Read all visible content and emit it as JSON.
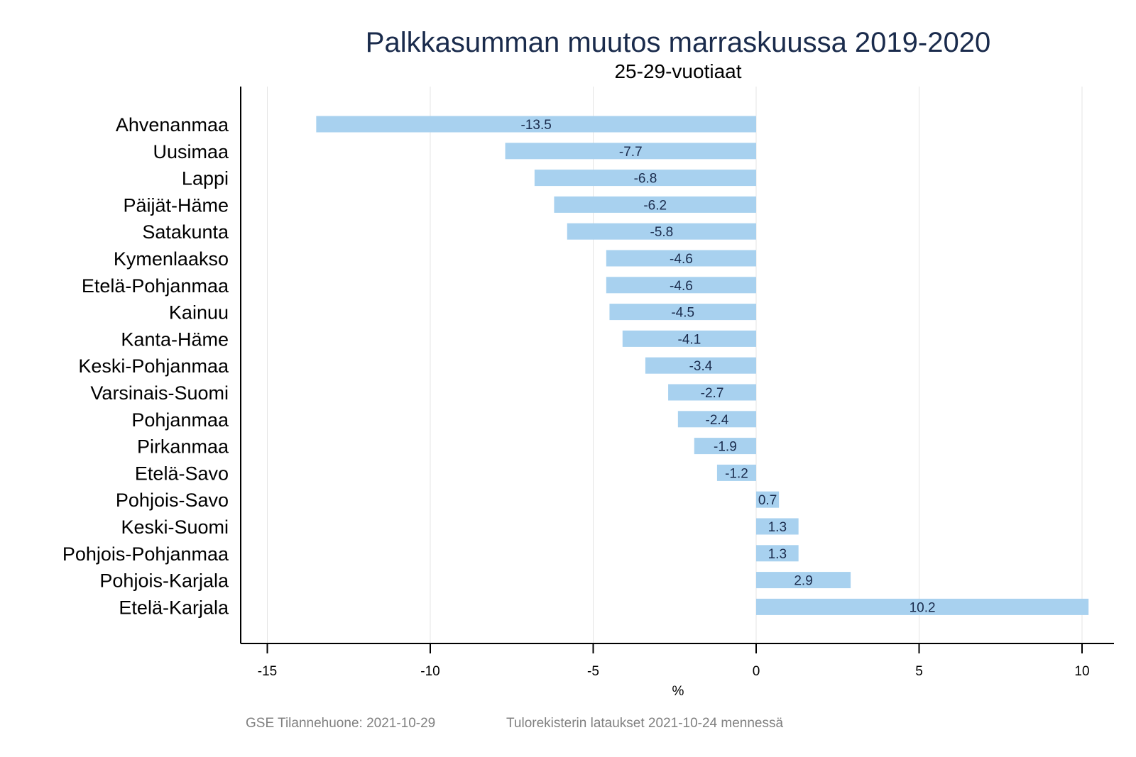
{
  "chart_data": {
    "type": "bar",
    "orientation": "horizontal",
    "title": "Palkkasumman muutos marraskuussa 2019-2020",
    "subtitle": "25-29-vuotiaat",
    "xlabel": "%",
    "ylabel": "",
    "xlim": [
      -16,
      11
    ],
    "xticks": [
      -15,
      -10,
      -5,
      0,
      5,
      10
    ],
    "xtick_labels": [
      "-15",
      "-10",
      "-5",
      "0",
      "5",
      "10"
    ],
    "grid": true,
    "legend": "none",
    "bar_color": "#a8d1ef",
    "label_color": "#1a2b4c",
    "categories": [
      "Ahvenanmaa",
      "Uusimaa",
      "Lappi",
      "Päijät-Häme",
      "Satakunta",
      "Kymenlaakso",
      "Etelä-Pohjanmaa",
      "Kainuu",
      "Kanta-Häme",
      "Keski-Pohjanmaa",
      "Varsinais-Suomi",
      "Pohjanmaa",
      "Pirkanmaa",
      "Etelä-Savo",
      "Pohjois-Savo",
      "Keski-Suomi",
      "Pohjois-Pohjanmaa",
      "Pohjois-Karjala",
      "Etelä-Karjala"
    ],
    "values": [
      -13.5,
      -7.7,
      -6.8,
      -6.2,
      -5.8,
      -4.6,
      -4.6,
      -4.5,
      -4.1,
      -3.4,
      -2.7,
      -2.4,
      -1.9,
      -1.2,
      0.7,
      1.3,
      1.3,
      2.9,
      10.2
    ],
    "value_labels": [
      "-13.5",
      "-7.7",
      "-6.8",
      "-6.2",
      "-5.8",
      "-4.6",
      "-4.6",
      "-4.5",
      "-4.1",
      "-3.4",
      "-2.7",
      "-2.4",
      "-1.9",
      "-1.2",
      "0.7",
      "1.3",
      "1.3",
      "2.9",
      "10.2"
    ]
  },
  "footer": {
    "source": "GSE Tilannehuone: 2021-10-29",
    "note": "Tulorekisterin lataukset 2021-10-24 mennessä"
  }
}
